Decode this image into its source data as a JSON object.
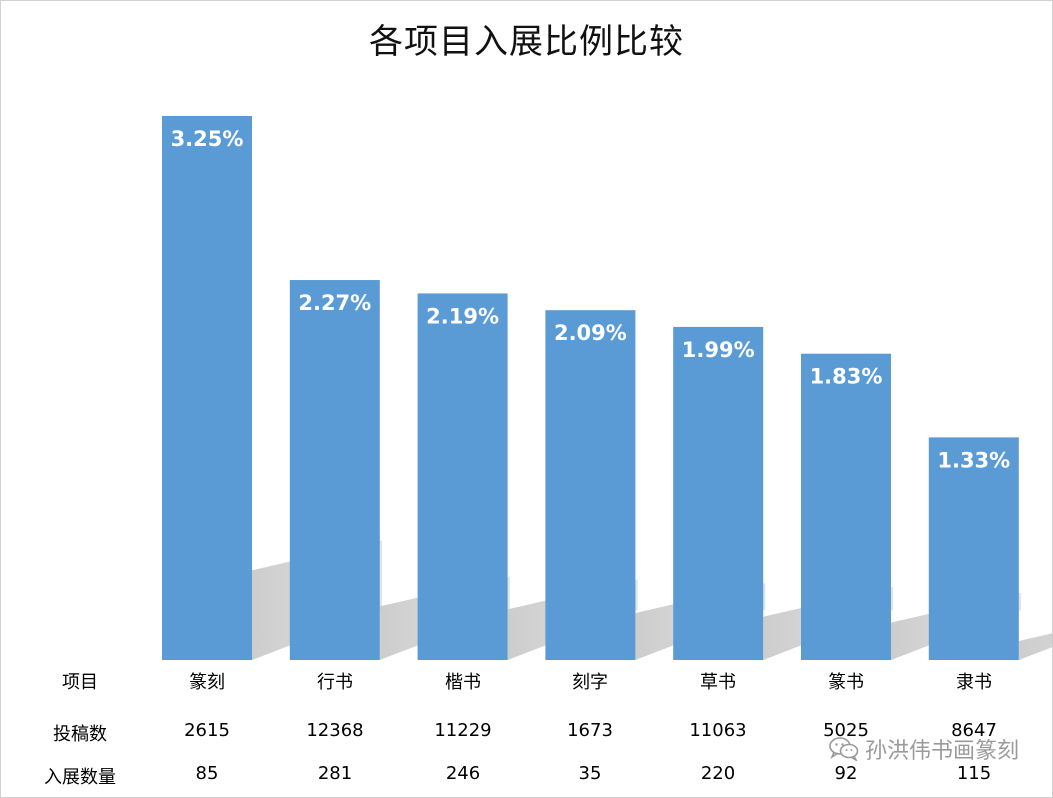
{
  "chart_data": {
    "type": "bar",
    "title": "各项目入展比例比较",
    "categories": [
      "篆刻",
      "行书",
      "楷书",
      "刻字",
      "草书",
      "篆书",
      "隶书"
    ],
    "values": [
      3.25,
      2.27,
      2.19,
      2.09,
      1.99,
      1.83,
      1.33
    ],
    "value_labels": [
      "3.25%",
      "2.27%",
      "2.19%",
      "2.09%",
      "1.99%",
      "1.83%",
      "1.33%"
    ],
    "ylim": [
      0,
      3.25
    ],
    "bar_color": "#5b9bd5",
    "grid": false,
    "table": {
      "row_headers": [
        "项目",
        "投稿数",
        "入展数量"
      ],
      "submissions": [
        "2615",
        "12368",
        "11229",
        "1673",
        "11063",
        "5025",
        "8647"
      ],
      "accepted": [
        "85",
        "281",
        "246",
        "35",
        "220",
        "92",
        "115"
      ]
    }
  },
  "watermark": {
    "text": "孙洪伟书画篆刻",
    "icon": "wechat-icon"
  }
}
